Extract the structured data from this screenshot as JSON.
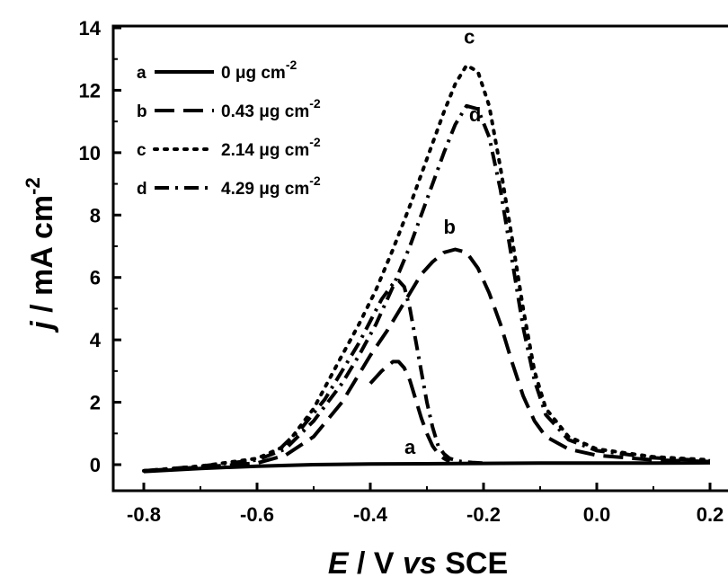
{
  "chart_data": {
    "type": "line",
    "xlabel": {
      "italic": "E",
      "rest": " / V ",
      "italic2": "vs",
      "rest2": " SCE"
    },
    "ylabel": {
      "italic": "j",
      "rest": " / mA cm",
      "sup": "-2"
    },
    "xlim": [
      -0.8,
      0.2
    ],
    "ylim": [
      -0.8,
      14
    ],
    "xticks": [
      -0.8,
      -0.6,
      -0.4,
      -0.2,
      0.0,
      0.2
    ],
    "xtick_labels": [
      "-0.8",
      "-0.6",
      "-0.4",
      "-0.2",
      "0.0",
      "0.2"
    ],
    "yticks": [
      0,
      2,
      4,
      6,
      8,
      10,
      12,
      14
    ],
    "ytick_labels": [
      "0",
      "2",
      "4",
      "6",
      "8",
      "10",
      "12",
      "14"
    ],
    "legend_position": "top-left",
    "series": [
      {
        "id": "a",
        "name": "0 μg cm",
        "sup": "-2",
        "dash": "solid",
        "x": [
          -0.8,
          -0.7,
          -0.6,
          -0.5,
          -0.4,
          -0.3,
          -0.2,
          -0.1,
          0.0,
          0.1,
          0.2
        ],
        "y": [
          -0.22,
          -0.12,
          -0.05,
          0.0,
          0.02,
          0.03,
          0.04,
          0.05,
          0.05,
          0.05,
          0.06
        ]
      },
      {
        "id": "b",
        "name": "0.43 μg cm",
        "sup": "-2",
        "dash": "dash",
        "x": [
          -0.8,
          -0.7,
          -0.6,
          -0.55,
          -0.5,
          -0.45,
          -0.4,
          -0.37,
          -0.35,
          -0.33,
          -0.31,
          -0.29,
          -0.27,
          -0.25,
          -0.23,
          -0.21,
          -0.19,
          -0.17,
          -0.15,
          -0.13,
          -0.11,
          -0.09,
          -0.05,
          0.0,
          0.1,
          0.2
        ],
        "y": [
          -0.2,
          -0.08,
          0.05,
          0.3,
          0.9,
          2.0,
          3.5,
          4.3,
          4.9,
          5.5,
          6.1,
          6.5,
          6.8,
          6.9,
          6.8,
          6.3,
          5.5,
          4.5,
          3.3,
          2.2,
          1.4,
          0.9,
          0.5,
          0.3,
          0.15,
          0.1
        ]
      },
      {
        "id": "c",
        "name": "2.14 μg cm",
        "sup": "-2",
        "dash": "dot",
        "x": [
          -0.8,
          -0.7,
          -0.6,
          -0.55,
          -0.5,
          -0.45,
          -0.42,
          -0.39,
          -0.36,
          -0.33,
          -0.3,
          -0.27,
          -0.25,
          -0.23,
          -0.21,
          -0.19,
          -0.17,
          -0.15,
          -0.13,
          -0.11,
          -0.09,
          -0.05,
          0.0,
          0.1,
          0.2
        ],
        "y": [
          -0.2,
          -0.05,
          0.2,
          0.6,
          1.8,
          3.5,
          4.5,
          5.6,
          6.9,
          8.3,
          9.8,
          11.3,
          12.2,
          12.8,
          12.6,
          11.5,
          9.5,
          7.3,
          5.0,
          3.0,
          1.8,
          0.9,
          0.5,
          0.25,
          0.15
        ]
      },
      {
        "id": "d",
        "name": "4.29 μg cm",
        "sup": "-2",
        "dash": "dashdot",
        "x": [
          -0.8,
          -0.7,
          -0.6,
          -0.55,
          -0.5,
          -0.45,
          -0.42,
          -0.39,
          -0.36,
          -0.33,
          -0.3,
          -0.27,
          -0.25,
          -0.23,
          -0.21,
          -0.19,
          -0.17,
          -0.15,
          -0.13,
          -0.11,
          -0.09,
          -0.05,
          0.0,
          0.1,
          0.2
        ],
        "y": [
          -0.2,
          -0.05,
          0.15,
          0.5,
          1.4,
          2.6,
          3.5,
          4.5,
          5.7,
          7.0,
          8.5,
          10.0,
          10.9,
          11.5,
          11.4,
          10.5,
          8.8,
          6.6,
          4.4,
          2.7,
          1.6,
          0.8,
          0.45,
          0.22,
          0.12
        ]
      }
    ],
    "extra_series": [
      {
        "id": "a-peak",
        "dash": "dashdot",
        "x": [
          -0.56,
          -0.52,
          -0.48,
          -0.45,
          -0.42,
          -0.4,
          -0.38,
          -0.36,
          -0.35,
          -0.34,
          -0.33,
          -0.32,
          -0.31,
          -0.3,
          -0.29,
          -0.28,
          -0.27,
          -0.26,
          -0.24,
          -0.22,
          -0.2
        ],
        "y": [
          0.5,
          1.2,
          2.1,
          3.0,
          3.9,
          4.6,
          5.3,
          5.8,
          5.9,
          5.7,
          5.0,
          4.0,
          3.0,
          2.0,
          1.2,
          0.6,
          0.35,
          0.2,
          0.1,
          0.07,
          0.05
        ]
      },
      {
        "id": "b-shoulder",
        "dash": "dash",
        "x": [
          -0.4,
          -0.38,
          -0.36,
          -0.35,
          -0.34,
          -0.33,
          -0.32,
          -0.31,
          -0.3,
          -0.29,
          -0.28,
          -0.27,
          -0.26
        ],
        "y": [
          2.6,
          3.0,
          3.3,
          3.3,
          3.1,
          2.7,
          2.1,
          1.5,
          1.0,
          0.6,
          0.35,
          0.2,
          0.1
        ]
      }
    ],
    "curve_labels": [
      {
        "text": "a",
        "x": -0.33,
        "y": 0.35
      },
      {
        "text": "b",
        "x": -0.26,
        "y": 7.4
      },
      {
        "text": "c",
        "x": -0.225,
        "y": 13.5
      },
      {
        "text": "d",
        "x": -0.215,
        "y": 11.0
      }
    ],
    "legend": [
      {
        "letter": "a",
        "label": "0 μg cm",
        "sup": "-2",
        "dash": "solid"
      },
      {
        "letter": "b",
        "label": "0.43 μg cm",
        "sup": "-2",
        "dash": "dash"
      },
      {
        "letter": "c",
        "label": "2.14 μg cm",
        "sup": "-2",
        "dash": "dot"
      },
      {
        "letter": "d",
        "label": "4.29 μg cm",
        "sup": "-2",
        "dash": "dashdot"
      }
    ]
  }
}
